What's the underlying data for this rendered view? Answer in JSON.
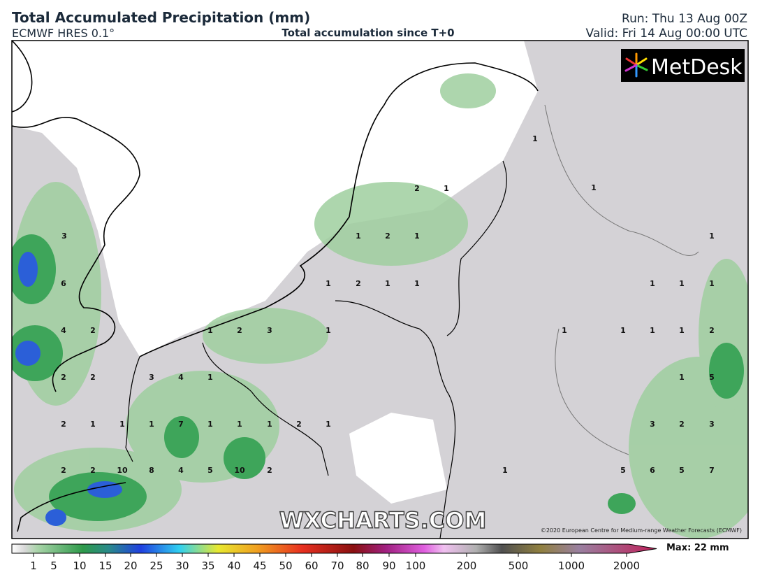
{
  "header": {
    "title": "Total Accumulated Precipitation (mm)",
    "model": "ECMWF HRES 0.1°",
    "description": "Total accumulation since T+0",
    "run": "Run: Thu 13 Aug 00Z",
    "valid": "Valid: Fri 14 Aug 00:00 UTC"
  },
  "logo": "MetDesk",
  "watermark": "WXCHARTS.COM",
  "copyright": "©2020 European Centre for Medium-range Weather Forecasts (ECMWF)",
  "map_labels": [
    "3",
    "1",
    "2",
    "1",
    "1",
    "2",
    "1",
    "1",
    "1",
    "6",
    "1",
    "2",
    "1",
    "1",
    "1",
    "1",
    "1",
    "4",
    "2",
    "1",
    "2",
    "3",
    "1",
    "1",
    "1",
    "1",
    "1",
    "2",
    "2",
    "2",
    "3",
    "4",
    "1",
    "1",
    "5",
    "2",
    "1",
    "1",
    "1",
    "7",
    "1",
    "1",
    "1",
    "2",
    "1",
    "3",
    "2",
    "3",
    "2",
    "2",
    "10",
    "8",
    "4",
    "5",
    "10",
    "2",
    "1",
    "5",
    "6",
    "5",
    "7"
  ],
  "colorbar": {
    "ticks": [
      1,
      5,
      10,
      15,
      20,
      25,
      30,
      35,
      40,
      45,
      50,
      60,
      70,
      80,
      90,
      100,
      200,
      500,
      1000,
      2000
    ],
    "max": "Max: 22 mm"
  }
}
